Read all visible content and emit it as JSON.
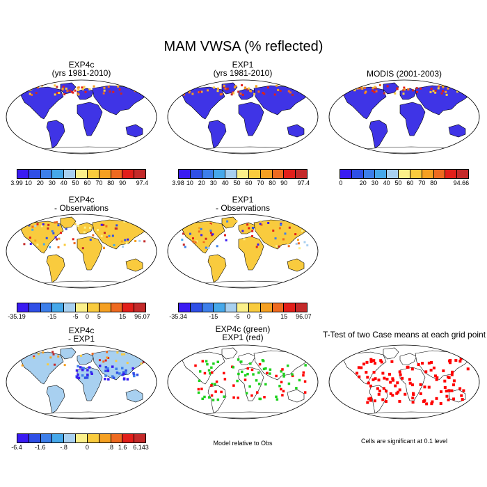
{
  "figure_title": "MAM VWSA (% reflected)",
  "colors": {
    "palette_11": [
      "#3a1bf2",
      "#2f4fe6",
      "#3d7fea",
      "#46a8ea",
      "#a8d0f0",
      "#fbf08a",
      "#f9cb3e",
      "#f5a022",
      "#ee6a20",
      "#e21f1a",
      "#c42a2a"
    ],
    "land_model": "#3f34e6",
    "ocean": "#ffffff",
    "sig_red": "#ff0000",
    "diff_green": "#1ed21e",
    "coast": "#000000"
  },
  "chart_data": [
    {
      "type": "heatmap",
      "title_line1": "EXP4c",
      "title_line2": "(yrs 1981-2010)",
      "colorbar_labels": [
        "3.99",
        "10",
        "20",
        "30",
        "40",
        "50",
        "60",
        "70",
        "80",
        "90",
        "97.4"
      ],
      "range": [
        3.99,
        97.4
      ]
    },
    {
      "type": "heatmap",
      "title_line1": "EXP1",
      "title_line2": "(yrs 1981-2010)",
      "colorbar_labels": [
        "3.98",
        "10",
        "20",
        "30",
        "40",
        "50",
        "60",
        "70",
        "80",
        "90",
        "97.4"
      ],
      "range": [
        3.98,
        97.4
      ]
    },
    {
      "type": "heatmap",
      "title_line1": "MODIS (2001-2003)",
      "title_line2": "",
      "colorbar_labels": [
        "0",
        "20",
        "30",
        "40",
        "50",
        "60",
        "70",
        "80",
        "94.66"
      ],
      "range": [
        0,
        94.66
      ]
    },
    {
      "type": "heatmap",
      "title_line1": "EXP4c",
      "title_line2": "- Observations",
      "colorbar_labels": [
        "-35.19",
        "-15",
        "-5",
        "0",
        "5",
        "15",
        "96.07"
      ],
      "range": [
        -35.19,
        96.07
      ]
    },
    {
      "type": "heatmap",
      "title_line1": "EXP1",
      "title_line2": "- Observations",
      "colorbar_labels": [
        "-35.34",
        "-15",
        "-5",
        "0",
        "5",
        "15",
        "96.07"
      ],
      "range": [
        -35.34,
        96.07
      ]
    },
    {
      "type": "heatmap",
      "title_line1": "EXP4c",
      "title_line2": "- EXP1",
      "colorbar_labels": [
        "-6.4",
        "-1.6",
        "-.8",
        "0",
        ".8",
        "1.6",
        "6.143"
      ],
      "range": [
        -6.4,
        6.143
      ]
    },
    {
      "type": "heatmap",
      "title_line1": "EXP4c (green)",
      "title_line2": "EXP1 (red)",
      "caption": "Model relative to Obs"
    },
    {
      "type": "heatmap",
      "title_line1": "T-Test of two Case means at each grid point",
      "title_line2": "",
      "caption": "Cells are significant at 0.1 level"
    }
  ]
}
